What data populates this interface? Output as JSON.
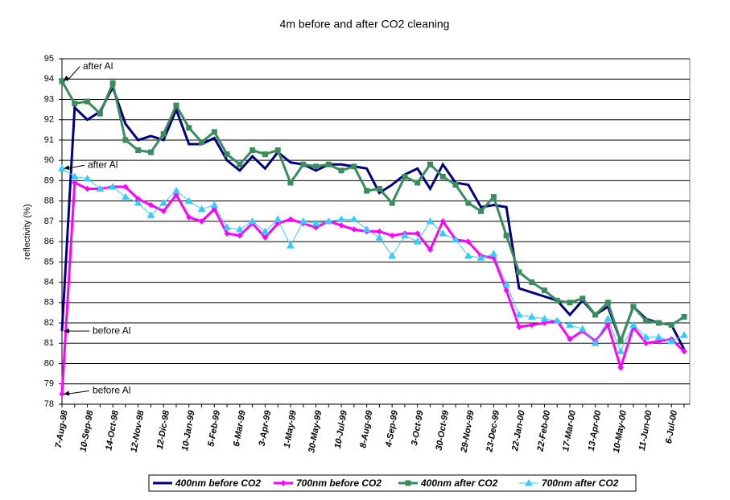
{
  "chart_data": {
    "type": "line",
    "title": "4m before and after CO2 cleaning",
    "y_label": "reflectivity (%)",
    "categories": [
      "7-Aug-98",
      null,
      "10-Sep-98",
      null,
      "14-Oct-98",
      null,
      "12-Nov-98",
      null,
      "12-Dic-98",
      null,
      "10-Jan-99",
      null,
      "5-Feb-99",
      null,
      "6-Mar-99",
      null,
      "3-Apr-99",
      null,
      "1-May-99",
      null,
      "30-May-99",
      null,
      "10-Jul-99",
      null,
      "8-Aug-99",
      null,
      "4-Sep-99",
      null,
      "3-Oct-99",
      null,
      "30-Oct-99",
      null,
      "29-Nov-99",
      null,
      "23-Dec-99",
      null,
      "22-Jan-00",
      null,
      "22-Feb-00",
      null,
      "17-Mar-00",
      null,
      "13-Apr-00",
      null,
      "10-May-00",
      null,
      "11-Jun-00",
      null,
      "6-Jul-00",
      null
    ],
    "series": [
      {
        "name": "400nm before CO2",
        "color": "#000080",
        "marker": "none",
        "values": [
          81.6,
          92.6,
          92.0,
          92.4,
          93.6,
          91.8,
          91.0,
          91.2,
          91.0,
          92.5,
          90.8,
          90.8,
          91.1,
          90.0,
          89.5,
          90.2,
          89.6,
          90.4,
          89.9,
          89.8,
          89.5,
          89.8,
          89.8,
          89.7,
          89.6,
          88.4,
          88.8,
          89.3,
          89.6,
          88.6,
          89.8,
          88.9,
          88.8,
          87.7,
          87.8,
          87.7,
          83.7,
          83.5,
          83.3,
          83.1,
          82.4,
          83.1,
          82.4,
          82.8,
          81.1,
          82.8,
          82.2,
          82.0,
          81.9,
          80.7
        ]
      },
      {
        "name": "700nm before CO2",
        "color": "#ff00ff",
        "marker": "diamond",
        "values": [
          78.5,
          88.9,
          88.6,
          88.6,
          88.7,
          88.7,
          88.1,
          87.8,
          87.5,
          88.3,
          87.2,
          87.0,
          87.6,
          86.4,
          86.3,
          86.9,
          86.2,
          86.9,
          87.1,
          86.9,
          86.7,
          87.0,
          86.8,
          86.6,
          86.5,
          86.5,
          86.3,
          86.4,
          86.4,
          85.6,
          87.0,
          86.1,
          86.0,
          85.3,
          85.2,
          83.6,
          81.8,
          81.9,
          82.0,
          82.1,
          81.2,
          81.6,
          81.1,
          81.9,
          79.8,
          81.8,
          81.0,
          81.1,
          81.2,
          80.6
        ]
      },
      {
        "name": "400nm after CO2",
        "color": "#3a8c5c",
        "marker": "square",
        "values": [
          93.9,
          92.8,
          92.9,
          92.3,
          93.8,
          91.0,
          90.5,
          90.4,
          91.3,
          92.7,
          91.6,
          90.9,
          91.4,
          90.3,
          89.8,
          90.5,
          90.3,
          90.5,
          88.9,
          89.8,
          89.7,
          89.8,
          89.5,
          89.7,
          88.5,
          88.6,
          87.9,
          89.2,
          88.9,
          89.8,
          89.2,
          88.8,
          87.9,
          87.5,
          88.2,
          86.3,
          84.5,
          84.0,
          83.6,
          83.1,
          83.0,
          83.2,
          82.4,
          83.0,
          81.1,
          82.8,
          82.1,
          82.0,
          81.9,
          82.3
        ]
      },
      {
        "name": "700nm after CO2",
        "color": "#33ccff",
        "marker": "triangle",
        "values": [
          89.6,
          89.2,
          89.1,
          88.6,
          88.7,
          88.2,
          87.9,
          87.3,
          87.9,
          88.5,
          88.0,
          87.6,
          87.8,
          86.7,
          86.6,
          87.0,
          86.5,
          87.1,
          85.8,
          87.0,
          86.9,
          87.0,
          87.1,
          87.1,
          86.6,
          86.2,
          85.3,
          86.3,
          86.0,
          87.0,
          86.4,
          86.1,
          85.3,
          85.2,
          85.4,
          83.9,
          82.4,
          82.3,
          82.2,
          82.1,
          81.9,
          81.7,
          81.0,
          82.2,
          80.6,
          81.9,
          81.3,
          81.3,
          81.1,
          81.4
        ]
      }
    ],
    "annotations": [
      "after Al",
      "after Al",
      "before Al",
      "before Al"
    ],
    "ylim": [
      78,
      95
    ],
    "yticks": [
      78,
      79,
      80,
      81,
      82,
      83,
      84,
      85,
      86,
      87,
      88,
      89,
      90,
      91,
      92,
      93,
      94,
      95
    ],
    "grid": true,
    "legend": "bottom"
  }
}
